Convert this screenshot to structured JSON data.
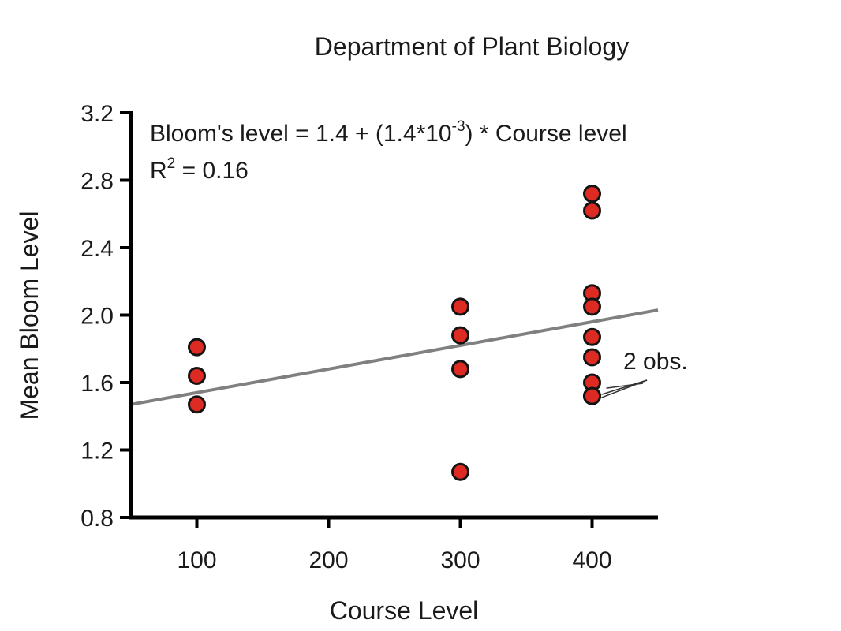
{
  "chart_data": {
    "type": "scatter",
    "title": "Department of Plant Biology",
    "xlabel": "Course Level",
    "ylabel": "Mean Bloom Level",
    "xlim": [
      50,
      450
    ],
    "ylim": [
      0.8,
      3.2
    ],
    "x_ticks": [
      100,
      200,
      300,
      400
    ],
    "y_ticks": [
      0.8,
      1.2,
      1.6,
      2.0,
      2.4,
      2.8,
      3.2
    ],
    "x_tick_labels": [
      "100",
      "200",
      "300",
      "400"
    ],
    "y_tick_labels": [
      "0.8",
      "1.2",
      "1.6",
      "2.0",
      "2.4",
      "2.8",
      "3.2"
    ],
    "grid": false,
    "points": [
      {
        "x": 100,
        "y": 1.81
      },
      {
        "x": 100,
        "y": 1.64
      },
      {
        "x": 100,
        "y": 1.47
      },
      {
        "x": 300,
        "y": 2.05
      },
      {
        "x": 300,
        "y": 1.88
      },
      {
        "x": 300,
        "y": 1.68
      },
      {
        "x": 300,
        "y": 1.07
      },
      {
        "x": 400,
        "y": 2.72
      },
      {
        "x": 400,
        "y": 2.62
      },
      {
        "x": 400,
        "y": 2.13
      },
      {
        "x": 400,
        "y": 2.05
      },
      {
        "x": 400,
        "y": 1.87
      },
      {
        "x": 400,
        "y": 1.75
      },
      {
        "x": 400,
        "y": 1.6
      },
      {
        "x": 400,
        "y": 1.52
      },
      {
        "x": 400,
        "y": 1.52
      }
    ],
    "trendline": {
      "intercept": 1.4,
      "slope": 0.0014,
      "x_start": 50,
      "x_end": 450
    },
    "equation": {
      "prefix": "Bloom's level = 1.4 + (1.4*10",
      "exponent": "-3",
      "suffix": ") * Course level"
    },
    "r_squared": {
      "label": "R",
      "power": "2",
      "value_text": " = 0.16"
    },
    "annotation": {
      "text": "2 obs.",
      "x": 400,
      "y": 1.52
    },
    "colors": {
      "marker_fill": "#dd2a22",
      "marker_edge": "#141414",
      "trendline": "#808080",
      "axis": "#000000",
      "text": "#1a1a1a"
    }
  }
}
